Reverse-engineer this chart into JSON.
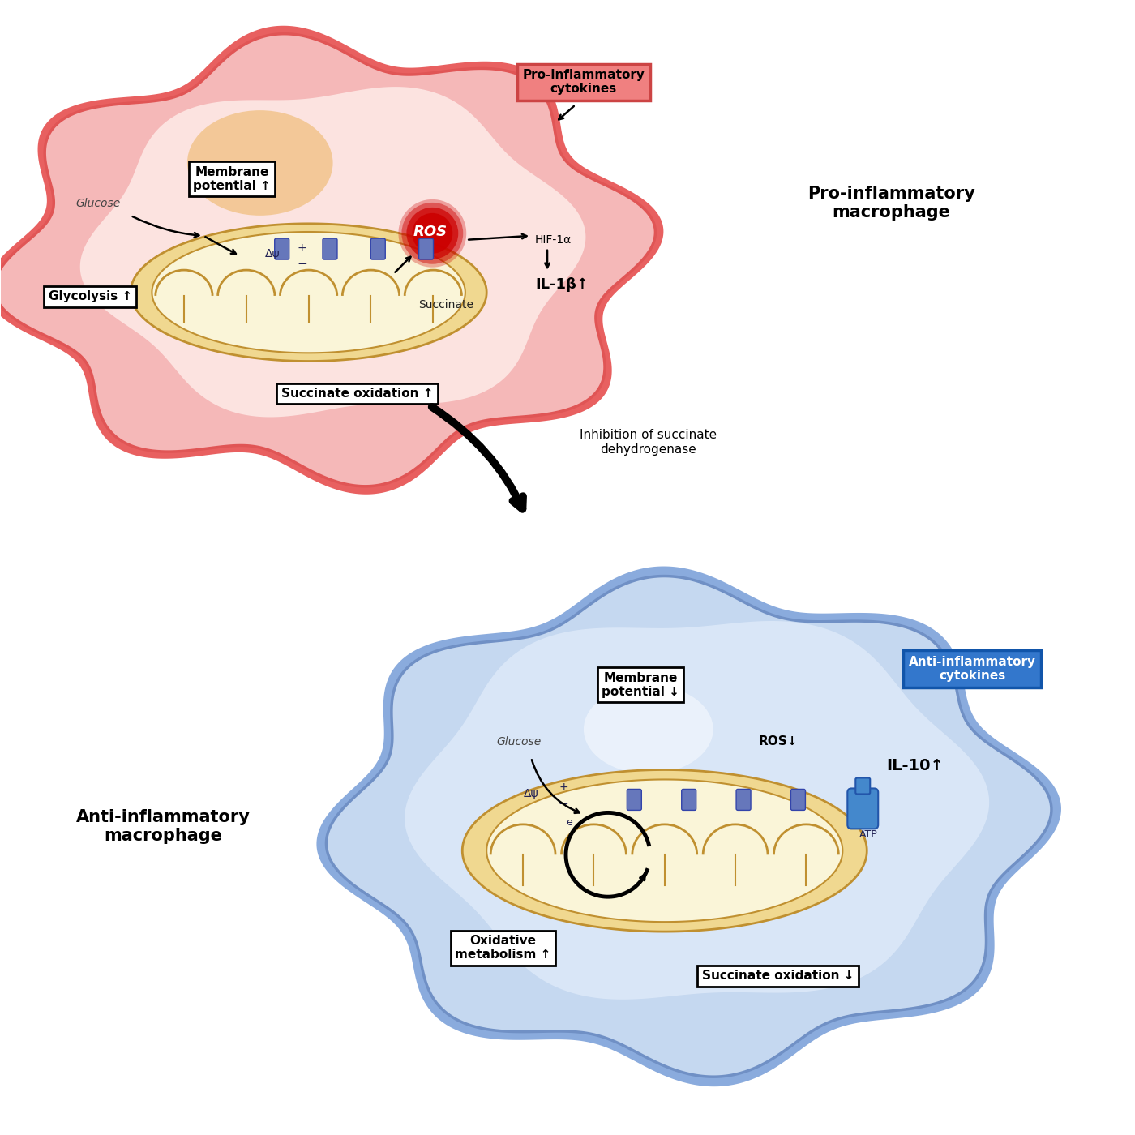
{
  "bg_color": "#ffffff",
  "pro_label": "Pro-inflammatory\nmacrophage",
  "anti_label": "Anti-inflammatory\nmacrophage",
  "pro_cytokines_label": "Pro-inflammatory\ncytokines",
  "anti_cytokines_label": "Anti-inflammatory\ncytokines",
  "inhibition_label": "Inhibition of succinate\ndehydrogenase",
  "glucose_label": "Glucose",
  "glycolysis_label": "Glycolysis ↑",
  "membrane_pot_up_label": "Membrane\npotential ↑",
  "membrane_pot_down_label": "Membrane\npotential ↓",
  "succinate_label": "Succinate",
  "succ_ox_up_label": "Succinate oxidation ↑",
  "succ_ox_down_label": "Succinate oxidation ↓",
  "ros_label": "ROS",
  "ros_down_label": "ROS↓",
  "hif_label": "HIF-1α",
  "il1b_label": "IL-1β↑",
  "il10_label": "IL-10↑",
  "oxmet_label": "Oxidative\nmetabolism ↑",
  "atp_label": "ATP",
  "delta_psi_label": "Δψ",
  "plus_label": "+",
  "minus_label": "−",
  "elec_label": "e⁻"
}
